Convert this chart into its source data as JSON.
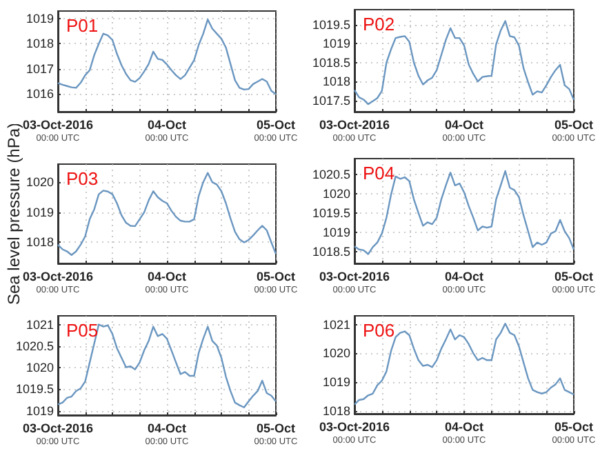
{
  "chart_data": [
    {
      "type": "line",
      "title": "P01",
      "grid": true,
      "xlim": [
        "2016-10-03T00:00",
        "2016-10-05T00:00"
      ],
      "xticks": [
        {
          "value": "2016-10-03T00:00",
          "label": "03-Oct-2016\n00:00 UTC"
        },
        {
          "value": "2016-10-03T06:00",
          "label": null
        },
        {
          "value": "2016-10-03T12:00",
          "label": null
        },
        {
          "value": "2016-10-03T18:00",
          "label": null
        },
        {
          "value": "2016-10-04T00:00",
          "label": "04-Oct\n00:00 UTC"
        },
        {
          "value": "2016-10-04T06:00",
          "label": null
        },
        {
          "value": "2016-10-04T12:00",
          "label": null
        },
        {
          "value": "2016-10-04T18:00",
          "label": null
        },
        {
          "value": "2016-10-05T00:00",
          "label": "05-Oct\n00:00 UTC"
        }
      ],
      "ylim": [
        1015.3,
        1019.3
      ],
      "yticks": [
        1016,
        1017,
        1018,
        1019
      ],
      "x": [
        "2016-10-03T00:00",
        "2016-10-03T01:00",
        "2016-10-03T02:00",
        "2016-10-03T03:00",
        "2016-10-03T04:00",
        "2016-10-03T05:00",
        "2016-10-03T06:00",
        "2016-10-03T07:00",
        "2016-10-03T08:00",
        "2016-10-03T09:00",
        "2016-10-03T10:00",
        "2016-10-03T11:00",
        "2016-10-03T12:00",
        "2016-10-03T13:00",
        "2016-10-03T14:00",
        "2016-10-03T15:00",
        "2016-10-03T16:00",
        "2016-10-03T17:00",
        "2016-10-03T18:00",
        "2016-10-03T19:00",
        "2016-10-03T20:00",
        "2016-10-03T21:00",
        "2016-10-03T22:00",
        "2016-10-03T23:00",
        "2016-10-04T00:00",
        "2016-10-04T01:00",
        "2016-10-04T02:00",
        "2016-10-04T03:00",
        "2016-10-04T04:00",
        "2016-10-04T05:00",
        "2016-10-04T06:00",
        "2016-10-04T07:00",
        "2016-10-04T08:00",
        "2016-10-04T09:00",
        "2016-10-04T10:00",
        "2016-10-04T11:00",
        "2016-10-04T12:00",
        "2016-10-04T13:00",
        "2016-10-04T14:00",
        "2016-10-04T15:00",
        "2016-10-04T16:00",
        "2016-10-04T17:00",
        "2016-10-04T18:00",
        "2016-10-04T19:00",
        "2016-10-04T20:00",
        "2016-10-04T21:00",
        "2016-10-04T22:00",
        "2016-10-04T23:00",
        "2016-10-05T00:00"
      ],
      "series": [
        {
          "color": "#6a96c0",
          "values": [
            1016.44,
            1016.37,
            1016.32,
            1016.27,
            1016.25,
            1016.45,
            1016.75,
            1016.95,
            1017.55,
            1018.0,
            1018.4,
            1018.33,
            1018.15,
            1017.6,
            1017.15,
            1016.8,
            1016.55,
            1016.49,
            1016.64,
            1016.9,
            1017.2,
            1017.69,
            1017.4,
            1017.36,
            1017.18,
            1016.95,
            1016.75,
            1016.6,
            1016.75,
            1017.05,
            1017.35,
            1017.95,
            1018.4,
            1018.96,
            1018.6,
            1018.4,
            1018.2,
            1017.85,
            1017.2,
            1016.55,
            1016.25,
            1016.18,
            1016.2,
            1016.4,
            1016.5,
            1016.6,
            1016.5,
            1016.13,
            1016.0
          ]
        }
      ]
    },
    {
      "type": "line",
      "title": "P02",
      "grid": true,
      "xlim": [
        "2016-10-03T00:00",
        "2016-10-05T00:00"
      ],
      "xticks": [
        {
          "value": "2016-10-03T00:00",
          "label": "03-Oct-2016\n00:00 UTC"
        },
        {
          "value": "2016-10-03T06:00",
          "label": null
        },
        {
          "value": "2016-10-03T12:00",
          "label": null
        },
        {
          "value": "2016-10-03T18:00",
          "label": null
        },
        {
          "value": "2016-10-04T00:00",
          "label": "04-Oct\n00:00 UTC"
        },
        {
          "value": "2016-10-04T06:00",
          "label": null
        },
        {
          "value": "2016-10-04T12:00",
          "label": null
        },
        {
          "value": "2016-10-04T18:00",
          "label": null
        },
        {
          "value": "2016-10-05T00:00",
          "label": "05-Oct\n00:00 UTC"
        }
      ],
      "ylim": [
        1017.2,
        1019.9
      ],
      "yticks": [
        1017.5,
        1018,
        1018.5,
        1019,
        1019.5
      ],
      "x": [
        "2016-10-03T00:00",
        "2016-10-03T01:00",
        "2016-10-03T02:00",
        "2016-10-03T03:00",
        "2016-10-03T04:00",
        "2016-10-03T05:00",
        "2016-10-03T06:00",
        "2016-10-03T07:00",
        "2016-10-03T08:00",
        "2016-10-03T09:00",
        "2016-10-03T10:00",
        "2016-10-03T11:00",
        "2016-10-03T12:00",
        "2016-10-03T13:00",
        "2016-10-03T14:00",
        "2016-10-03T15:00",
        "2016-10-03T16:00",
        "2016-10-03T17:00",
        "2016-10-03T18:00",
        "2016-10-03T19:00",
        "2016-10-03T20:00",
        "2016-10-03T21:00",
        "2016-10-03T22:00",
        "2016-10-03T23:00",
        "2016-10-04T00:00",
        "2016-10-04T01:00",
        "2016-10-04T02:00",
        "2016-10-04T03:00",
        "2016-10-04T04:00",
        "2016-10-04T05:00",
        "2016-10-04T06:00",
        "2016-10-04T07:00",
        "2016-10-04T08:00",
        "2016-10-04T09:00",
        "2016-10-04T10:00",
        "2016-10-04T11:00",
        "2016-10-04T12:00",
        "2016-10-04T13:00",
        "2016-10-04T14:00",
        "2016-10-04T15:00",
        "2016-10-04T16:00",
        "2016-10-04T17:00",
        "2016-10-04T18:00",
        "2016-10-04T19:00",
        "2016-10-04T20:00",
        "2016-10-04T21:00",
        "2016-10-04T22:00",
        "2016-10-04T23:00",
        "2016-10-05T00:00"
      ],
      "series": [
        {
          "color": "#6a96c0",
          "values": [
            1017.77,
            1017.58,
            1017.52,
            1017.4,
            1017.48,
            1017.56,
            1017.75,
            1018.5,
            1018.85,
            1019.15,
            1019.18,
            1019.2,
            1019.05,
            1018.5,
            1018.15,
            1017.92,
            1018.03,
            1018.1,
            1018.3,
            1018.7,
            1019.1,
            1019.41,
            1019.15,
            1019.15,
            1018.95,
            1018.45,
            1018.2,
            1018.0,
            1018.12,
            1018.14,
            1018.15,
            1018.98,
            1019.35,
            1019.6,
            1019.2,
            1019.17,
            1018.95,
            1018.35,
            1017.98,
            1017.65,
            1017.74,
            1017.71,
            1017.9,
            1018.12,
            1018.3,
            1018.44,
            1017.9,
            1017.8,
            1017.52
          ]
        }
      ]
    },
    {
      "type": "line",
      "title": "P03",
      "ylabel": "Sea level pressure (hPa)",
      "grid": true,
      "xlim": [
        "2016-10-03T00:00",
        "2016-10-05T00:00"
      ],
      "xticks": [
        {
          "value": "2016-10-03T00:00",
          "label": "03-Oct-2016\n00:00 UTC"
        },
        {
          "value": "2016-10-03T06:00",
          "label": null
        },
        {
          "value": "2016-10-03T12:00",
          "label": null
        },
        {
          "value": "2016-10-03T18:00",
          "label": null
        },
        {
          "value": "2016-10-04T00:00",
          "label": "04-Oct\n00:00 UTC"
        },
        {
          "value": "2016-10-04T06:00",
          "label": null
        },
        {
          "value": "2016-10-04T12:00",
          "label": null
        },
        {
          "value": "2016-10-04T18:00",
          "label": null
        },
        {
          "value": "2016-10-05T00:00",
          "label": "05-Oct\n00:00 UTC"
        }
      ],
      "ylim": [
        1017.3,
        1020.6
      ],
      "yticks": [
        1018,
        1019,
        1020
      ],
      "x": [
        "2016-10-03T00:00",
        "2016-10-03T01:00",
        "2016-10-03T02:00",
        "2016-10-03T03:00",
        "2016-10-03T04:00",
        "2016-10-03T05:00",
        "2016-10-03T06:00",
        "2016-10-03T07:00",
        "2016-10-03T08:00",
        "2016-10-03T09:00",
        "2016-10-03T10:00",
        "2016-10-03T11:00",
        "2016-10-03T12:00",
        "2016-10-03T13:00",
        "2016-10-03T14:00",
        "2016-10-03T15:00",
        "2016-10-03T16:00",
        "2016-10-03T17:00",
        "2016-10-03T18:00",
        "2016-10-03T19:00",
        "2016-10-03T20:00",
        "2016-10-03T21:00",
        "2016-10-03T22:00",
        "2016-10-03T23:00",
        "2016-10-04T00:00",
        "2016-10-04T01:00",
        "2016-10-04T02:00",
        "2016-10-04T03:00",
        "2016-10-04T04:00",
        "2016-10-04T05:00",
        "2016-10-04T06:00",
        "2016-10-04T07:00",
        "2016-10-04T08:00",
        "2016-10-04T09:00",
        "2016-10-04T10:00",
        "2016-10-04T11:00",
        "2016-10-04T12:00",
        "2016-10-04T13:00",
        "2016-10-04T14:00",
        "2016-10-04T15:00",
        "2016-10-04T16:00",
        "2016-10-04T17:00",
        "2016-10-04T18:00",
        "2016-10-04T19:00",
        "2016-10-04T20:00",
        "2016-10-04T21:00",
        "2016-10-04T22:00",
        "2016-10-04T23:00",
        "2016-10-05T00:00"
      ],
      "series": [
        {
          "color": "#6a96c0",
          "values": [
            1017.92,
            1017.77,
            1017.7,
            1017.58,
            1017.7,
            1017.92,
            1018.2,
            1018.77,
            1019.1,
            1019.6,
            1019.72,
            1019.69,
            1019.6,
            1019.3,
            1018.9,
            1018.65,
            1018.55,
            1018.54,
            1018.77,
            1019.0,
            1019.4,
            1019.7,
            1019.5,
            1019.38,
            1019.3,
            1019.05,
            1018.85,
            1018.72,
            1018.69,
            1018.69,
            1018.77,
            1019.54,
            1020.0,
            1020.31,
            1020.0,
            1019.92,
            1019.7,
            1019.3,
            1018.8,
            1018.35,
            1018.1,
            1018.0,
            1018.08,
            1018.23,
            1018.4,
            1018.55,
            1018.4,
            1018.0,
            1017.62
          ]
        }
      ]
    },
    {
      "type": "line",
      "title": "P04",
      "grid": true,
      "xlim": [
        "2016-10-03T00:00",
        "2016-10-05T00:00"
      ],
      "xticks": [
        {
          "value": "2016-10-03T00:00",
          "label": "03-Oct-2016\n00:00 UTC"
        },
        {
          "value": "2016-10-03T06:00",
          "label": null
        },
        {
          "value": "2016-10-03T12:00",
          "label": null
        },
        {
          "value": "2016-10-03T18:00",
          "label": null
        },
        {
          "value": "2016-10-04T00:00",
          "label": "04-Oct\n00:00 UTC"
        },
        {
          "value": "2016-10-04T06:00",
          "label": null
        },
        {
          "value": "2016-10-04T12:00",
          "label": null
        },
        {
          "value": "2016-10-04T18:00",
          "label": null
        },
        {
          "value": "2016-10-05T00:00",
          "label": "05-Oct\n00:00 UTC"
        }
      ],
      "ylim": [
        1018.2,
        1020.9
      ],
      "yticks": [
        1018.5,
        1019,
        1019.5,
        1020,
        1020.5
      ],
      "x": [
        "2016-10-03T00:00",
        "2016-10-03T01:00",
        "2016-10-03T02:00",
        "2016-10-03T03:00",
        "2016-10-03T04:00",
        "2016-10-03T05:00",
        "2016-10-03T06:00",
        "2016-10-03T07:00",
        "2016-10-03T08:00",
        "2016-10-03T09:00",
        "2016-10-03T10:00",
        "2016-10-03T11:00",
        "2016-10-03T12:00",
        "2016-10-03T13:00",
        "2016-10-03T14:00",
        "2016-10-03T15:00",
        "2016-10-03T16:00",
        "2016-10-03T17:00",
        "2016-10-03T18:00",
        "2016-10-03T19:00",
        "2016-10-03T20:00",
        "2016-10-03T21:00",
        "2016-10-03T22:00",
        "2016-10-03T23:00",
        "2016-10-04T00:00",
        "2016-10-04T01:00",
        "2016-10-04T02:00",
        "2016-10-04T03:00",
        "2016-10-04T04:00",
        "2016-10-04T05:00",
        "2016-10-04T06:00",
        "2016-10-04T07:00",
        "2016-10-04T08:00",
        "2016-10-04T09:00",
        "2016-10-04T10:00",
        "2016-10-04T11:00",
        "2016-10-04T12:00",
        "2016-10-04T13:00",
        "2016-10-04T14:00",
        "2016-10-04T15:00",
        "2016-10-04T16:00",
        "2016-10-04T17:00",
        "2016-10-04T18:00",
        "2016-10-04T19:00",
        "2016-10-04T20:00",
        "2016-10-04T21:00",
        "2016-10-04T22:00",
        "2016-10-04T23:00",
        "2016-10-05T00:00"
      ],
      "series": [
        {
          "color": "#6a96c0",
          "values": [
            1018.64,
            1018.56,
            1018.54,
            1018.44,
            1018.62,
            1018.74,
            1018.97,
            1019.38,
            1019.97,
            1020.44,
            1020.38,
            1020.42,
            1020.32,
            1019.85,
            1019.5,
            1019.17,
            1019.26,
            1019.21,
            1019.38,
            1019.85,
            1020.21,
            1020.54,
            1020.21,
            1020.26,
            1020.03,
            1019.68,
            1019.38,
            1019.05,
            1019.15,
            1019.12,
            1019.15,
            1019.85,
            1020.21,
            1020.58,
            1020.15,
            1020.09,
            1019.91,
            1019.44,
            1019.03,
            1018.62,
            1018.74,
            1018.68,
            1018.74,
            1018.97,
            1019.03,
            1019.32,
            1019.03,
            1018.85,
            1018.56
          ]
        }
      ]
    },
    {
      "type": "line",
      "title": "P05",
      "grid": true,
      "xlim": [
        "2016-10-03T00:00",
        "2016-10-05T00:00"
      ],
      "xticks": [
        {
          "value": "2016-10-03T00:00",
          "label": "03-Oct-2016\n00:00 UTC"
        },
        {
          "value": "2016-10-03T06:00",
          "label": null
        },
        {
          "value": "2016-10-03T12:00",
          "label": null
        },
        {
          "value": "2016-10-03T18:00",
          "label": null
        },
        {
          "value": "2016-10-04T00:00",
          "label": "04-Oct\n00:00 UTC"
        },
        {
          "value": "2016-10-04T06:00",
          "label": null
        },
        {
          "value": "2016-10-04T12:00",
          "label": null
        },
        {
          "value": "2016-10-04T18:00",
          "label": null
        },
        {
          "value": "2016-10-05T00:00",
          "label": "05-Oct\n00:00 UTC"
        }
      ],
      "ylim": [
        1018.9,
        1021.2
      ],
      "yticks": [
        1019,
        1019.5,
        1020,
        1020.5,
        1021
      ],
      "x": [
        "2016-10-03T00:00",
        "2016-10-03T01:00",
        "2016-10-03T02:00",
        "2016-10-03T03:00",
        "2016-10-03T04:00",
        "2016-10-03T05:00",
        "2016-10-03T06:00",
        "2016-10-03T07:00",
        "2016-10-03T08:00",
        "2016-10-03T09:00",
        "2016-10-03T10:00",
        "2016-10-03T11:00",
        "2016-10-03T12:00",
        "2016-10-03T13:00",
        "2016-10-03T14:00",
        "2016-10-03T15:00",
        "2016-10-03T16:00",
        "2016-10-03T17:00",
        "2016-10-03T18:00",
        "2016-10-03T19:00",
        "2016-10-03T20:00",
        "2016-10-03T21:00",
        "2016-10-03T22:00",
        "2016-10-03T23:00",
        "2016-10-04T00:00",
        "2016-10-04T01:00",
        "2016-10-04T02:00",
        "2016-10-04T03:00",
        "2016-10-04T04:00",
        "2016-10-04T05:00",
        "2016-10-04T06:00",
        "2016-10-04T07:00",
        "2016-10-04T08:00",
        "2016-10-04T09:00",
        "2016-10-04T10:00",
        "2016-10-04T11:00",
        "2016-10-04T12:00",
        "2016-10-04T13:00",
        "2016-10-04T14:00",
        "2016-10-04T15:00",
        "2016-10-04T16:00",
        "2016-10-04T17:00",
        "2016-10-04T18:00",
        "2016-10-04T19:00",
        "2016-10-04T20:00",
        "2016-10-04T21:00",
        "2016-10-04T22:00",
        "2016-10-04T23:00",
        "2016-10-05T00:00"
      ],
      "series": [
        {
          "color": "#6a96c0",
          "values": [
            1019.15,
            1019.19,
            1019.3,
            1019.33,
            1019.46,
            1019.52,
            1019.68,
            1020.12,
            1020.56,
            1021.0,
            1020.95,
            1020.98,
            1020.78,
            1020.45,
            1020.23,
            1020.01,
            1020.03,
            1019.96,
            1020.12,
            1020.4,
            1020.62,
            1020.95,
            1020.73,
            1020.78,
            1020.67,
            1020.4,
            1020.12,
            1019.85,
            1019.9,
            1019.81,
            1019.81,
            1020.34,
            1020.67,
            1020.95,
            1020.62,
            1020.51,
            1020.23,
            1019.79,
            1019.46,
            1019.19,
            1019.13,
            1019.08,
            1019.22,
            1019.35,
            1019.46,
            1019.7,
            1019.41,
            1019.35,
            1019.22
          ]
        }
      ]
    },
    {
      "type": "line",
      "title": "P06",
      "grid": true,
      "xlim": [
        "2016-10-03T00:00",
        "2016-10-05T00:00"
      ],
      "xticks": [
        {
          "value": "2016-10-03T00:00",
          "label": "03-Oct-2016\n00:00 UTC"
        },
        {
          "value": "2016-10-03T06:00",
          "label": null
        },
        {
          "value": "2016-10-03T12:00",
          "label": null
        },
        {
          "value": "2016-10-03T18:00",
          "label": null
        },
        {
          "value": "2016-10-04T00:00",
          "label": "04-Oct\n00:00 UTC"
        },
        {
          "value": "2016-10-04T06:00",
          "label": null
        },
        {
          "value": "2016-10-04T12:00",
          "label": null
        },
        {
          "value": "2016-10-04T18:00",
          "label": null
        },
        {
          "value": "2016-10-05T00:00",
          "label": "05-Oct\n00:00 UTC"
        }
      ],
      "ylim": [
        1017.9,
        1021.3
      ],
      "yticks": [
        1018,
        1019,
        1020,
        1021
      ],
      "x": [
        "2016-10-03T00:00",
        "2016-10-03T01:00",
        "2016-10-03T02:00",
        "2016-10-03T03:00",
        "2016-10-03T04:00",
        "2016-10-03T05:00",
        "2016-10-03T06:00",
        "2016-10-03T07:00",
        "2016-10-03T08:00",
        "2016-10-03T09:00",
        "2016-10-03T10:00",
        "2016-10-03T11:00",
        "2016-10-03T12:00",
        "2016-10-03T13:00",
        "2016-10-03T14:00",
        "2016-10-03T15:00",
        "2016-10-03T16:00",
        "2016-10-03T17:00",
        "2016-10-03T18:00",
        "2016-10-03T19:00",
        "2016-10-03T20:00",
        "2016-10-03T21:00",
        "2016-10-03T22:00",
        "2016-10-03T23:00",
        "2016-10-04T00:00",
        "2016-10-04T01:00",
        "2016-10-04T02:00",
        "2016-10-04T03:00",
        "2016-10-04T04:00",
        "2016-10-04T05:00",
        "2016-10-04T06:00",
        "2016-10-04T07:00",
        "2016-10-04T08:00",
        "2016-10-04T09:00",
        "2016-10-04T10:00",
        "2016-10-04T11:00",
        "2016-10-04T12:00",
        "2016-10-04T13:00",
        "2016-10-04T14:00",
        "2016-10-04T15:00",
        "2016-10-04T16:00",
        "2016-10-04T17:00",
        "2016-10-04T18:00",
        "2016-10-04T19:00",
        "2016-10-04T20:00",
        "2016-10-04T21:00",
        "2016-10-04T22:00",
        "2016-10-04T23:00",
        "2016-10-05T00:00"
      ],
      "series": [
        {
          "color": "#6a96c0",
          "values": [
            1018.22,
            1018.38,
            1018.41,
            1018.54,
            1018.6,
            1018.89,
            1019.05,
            1019.37,
            1020.08,
            1020.56,
            1020.71,
            1020.76,
            1020.63,
            1020.16,
            1019.76,
            1019.56,
            1019.6,
            1019.52,
            1019.76,
            1020.16,
            1020.48,
            1020.83,
            1020.48,
            1020.63,
            1020.56,
            1020.32,
            1020.0,
            1019.76,
            1019.84,
            1019.76,
            1019.76,
            1020.48,
            1020.71,
            1021.03,
            1020.71,
            1020.63,
            1020.24,
            1019.68,
            1019.13,
            1018.73,
            1018.65,
            1018.6,
            1018.65,
            1018.81,
            1018.92,
            1019.13,
            1018.73,
            1018.65,
            1018.57
          ]
        }
      ]
    }
  ]
}
